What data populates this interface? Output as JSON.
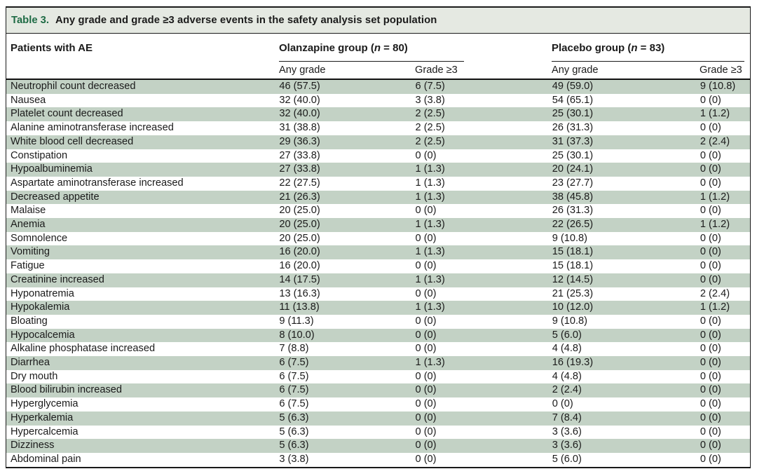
{
  "table": {
    "label": "Table 3.",
    "title": "Any grade and grade ≥3 adverse events in the safety analysis set population",
    "columns": {
      "patients": "Patients with AE",
      "sub_any": "Any grade",
      "sub_g3": "Grade ≥3"
    },
    "groups": [
      {
        "prefix": "Olanzapine group (",
        "n": "n",
        "suffix": " = 80)"
      },
      {
        "prefix": "Placebo group (",
        "n": "n",
        "suffix": " = 83)"
      }
    ],
    "rows": [
      {
        "ae": "Neutrophil count decreased",
        "olz_any": "46 (57.5)",
        "olz_g3": "6 (7.5)",
        "pbo_any": "49 (59.0)",
        "pbo_g3": "9 (10.8)"
      },
      {
        "ae": "Nausea",
        "olz_any": "32 (40.0)",
        "olz_g3": "3 (3.8)",
        "pbo_any": "54 (65.1)",
        "pbo_g3": "0 (0)"
      },
      {
        "ae": "Platelet count decreased",
        "olz_any": "32 (40.0)",
        "olz_g3": "2 (2.5)",
        "pbo_any": "25 (30.1)",
        "pbo_g3": "1 (1.2)"
      },
      {
        "ae": "Alanine aminotransferase increased",
        "olz_any": "31 (38.8)",
        "olz_g3": "2 (2.5)",
        "pbo_any": "26 (31.3)",
        "pbo_g3": "0 (0)"
      },
      {
        "ae": "White blood cell decreased",
        "olz_any": "29 (36.3)",
        "olz_g3": "2 (2.5)",
        "pbo_any": "31 (37.3)",
        "pbo_g3": "2 (2.4)"
      },
      {
        "ae": "Constipation",
        "olz_any": "27 (33.8)",
        "olz_g3": "0 (0)",
        "pbo_any": "25 (30.1)",
        "pbo_g3": "0 (0)"
      },
      {
        "ae": "Hypoalbuminemia",
        "olz_any": "27 (33.8)",
        "olz_g3": "1 (1.3)",
        "pbo_any": "20 (24.1)",
        "pbo_g3": "0 (0)"
      },
      {
        "ae": "Aspartate aminotransferase increased",
        "olz_any": "22 (27.5)",
        "olz_g3": "1 (1.3)",
        "pbo_any": "23 (27.7)",
        "pbo_g3": "0 (0)"
      },
      {
        "ae": "Decreased appetite",
        "olz_any": "21 (26.3)",
        "olz_g3": "1 (1.3)",
        "pbo_any": "38 (45.8)",
        "pbo_g3": "1 (1.2)"
      },
      {
        "ae": "Malaise",
        "olz_any": "20 (25.0)",
        "olz_g3": "0 (0)",
        "pbo_any": "26 (31.3)",
        "pbo_g3": "0 (0)"
      },
      {
        "ae": "Anemia",
        "olz_any": "20 (25.0)",
        "olz_g3": "1 (1.3)",
        "pbo_any": "22 (26.5)",
        "pbo_g3": "1 (1.2)"
      },
      {
        "ae": "Somnolence",
        "olz_any": "20 (25.0)",
        "olz_g3": "0 (0)",
        "pbo_any": "9 (10.8)",
        "pbo_g3": "0 (0)"
      },
      {
        "ae": "Vomiting",
        "olz_any": "16 (20.0)",
        "olz_g3": "1 (1.3)",
        "pbo_any": "15 (18.1)",
        "pbo_g3": "0 (0)"
      },
      {
        "ae": "Fatigue",
        "olz_any": "16 (20.0)",
        "olz_g3": "0 (0)",
        "pbo_any": "15 (18.1)",
        "pbo_g3": "0 (0)"
      },
      {
        "ae": "Creatinine increased",
        "olz_any": "14 (17.5)",
        "olz_g3": "1 (1.3)",
        "pbo_any": "12 (14.5)",
        "pbo_g3": "0 (0)"
      },
      {
        "ae": "Hyponatremia",
        "olz_any": "13 (16.3)",
        "olz_g3": "0 (0)",
        "pbo_any": "21 (25.3)",
        "pbo_g3": "2 (2.4)"
      },
      {
        "ae": "Hypokalemia",
        "olz_any": "11 (13.8)",
        "olz_g3": "1 (1.3)",
        "pbo_any": "10 (12.0)",
        "pbo_g3": "1 (1.2)"
      },
      {
        "ae": "Bloating",
        "olz_any": "9 (11.3)",
        "olz_g3": "0 (0)",
        "pbo_any": "9 (10.8)",
        "pbo_g3": "0 (0)"
      },
      {
        "ae": "Hypocalcemia",
        "olz_any": "8 (10.0)",
        "olz_g3": "0 (0)",
        "pbo_any": "5 (6.0)",
        "pbo_g3": "0 (0)"
      },
      {
        "ae": "Alkaline phosphatase increased",
        "olz_any": "7 (8.8)",
        "olz_g3": "0 (0)",
        "pbo_any": "4 (4.8)",
        "pbo_g3": "0 (0)"
      },
      {
        "ae": "Diarrhea",
        "olz_any": "6 (7.5)",
        "olz_g3": "1 (1.3)",
        "pbo_any": "16 (19.3)",
        "pbo_g3": "0 (0)"
      },
      {
        "ae": "Dry mouth",
        "olz_any": "6 (7.5)",
        "olz_g3": "0 (0)",
        "pbo_any": "4 (4.8)",
        "pbo_g3": "0 (0)"
      },
      {
        "ae": "Blood bilirubin increased",
        "olz_any": "6 (7.5)",
        "olz_g3": "0 (0)",
        "pbo_any": "2 (2.4)",
        "pbo_g3": "0 (0)"
      },
      {
        "ae": "Hyperglycemia",
        "olz_any": "6 (7.5)",
        "olz_g3": "0 (0)",
        "pbo_any": "0 (0)",
        "pbo_g3": "0 (0)"
      },
      {
        "ae": "Hyperkalemia",
        "olz_any": "5 (6.3)",
        "olz_g3": "0 (0)",
        "pbo_any": "7 (8.4)",
        "pbo_g3": "0 (0)"
      },
      {
        "ae": "Hypercalcemia",
        "olz_any": "5 (6.3)",
        "olz_g3": "0 (0)",
        "pbo_any": "3 (3.6)",
        "pbo_g3": "0 (0)"
      },
      {
        "ae": "Dizziness",
        "olz_any": "5 (6.3)",
        "olz_g3": "0 (0)",
        "pbo_any": "3 (3.6)",
        "pbo_g3": "0 (0)"
      },
      {
        "ae": "Abdominal pain",
        "olz_any": "3 (3.8)",
        "olz_g3": "0 (0)",
        "pbo_any": "5 (6.0)",
        "pbo_g3": "0 (0)"
      }
    ]
  },
  "colors": {
    "stripe": "#c3d2c5",
    "title_bg": "#e5e9e2",
    "table_label_green": "#1f6b45"
  }
}
